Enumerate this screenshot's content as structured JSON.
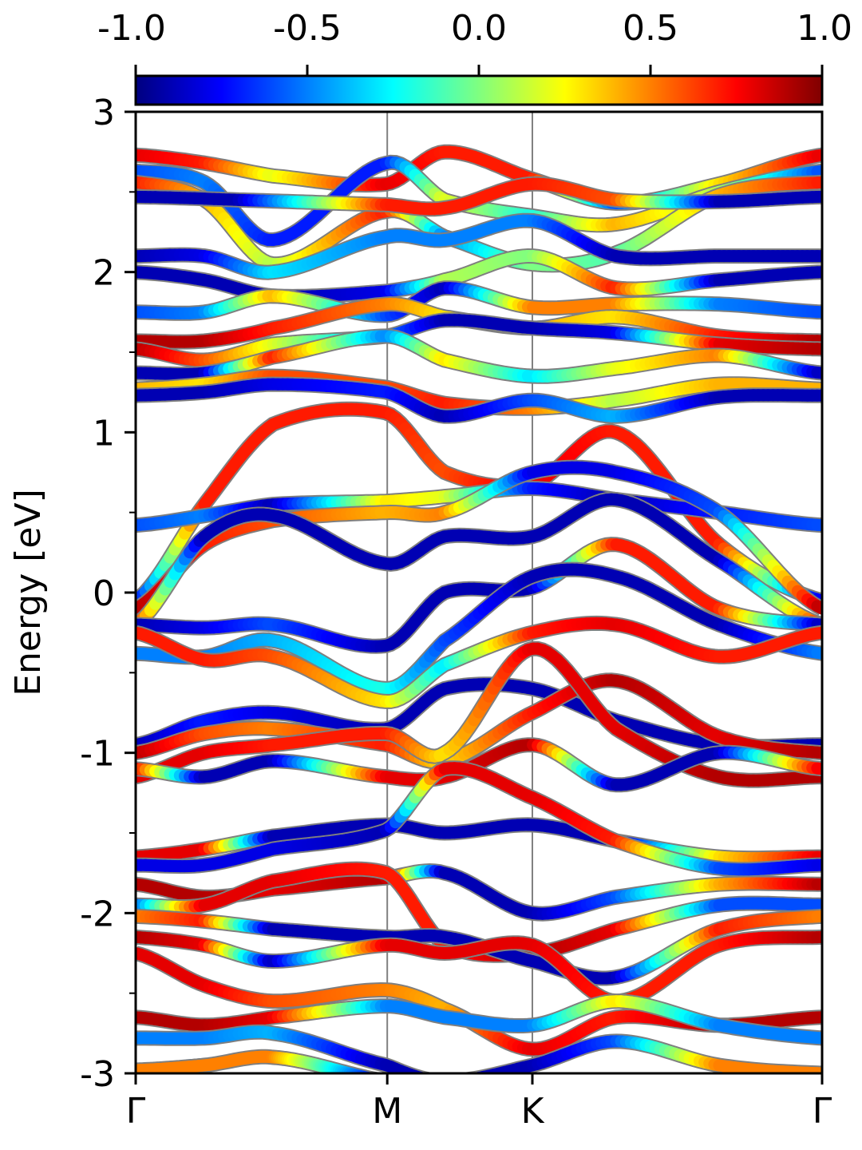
{
  "chart_data": {
    "type": "line",
    "title": "",
    "xlabel": "",
    "ylabel": "Energy [eV]",
    "ylim": [
      -3,
      3
    ],
    "grid": false,
    "legend": "none",
    "y_ticks": [
      {
        "value": 3,
        "label": "3"
      },
      {
        "value": 2,
        "label": "2"
      },
      {
        "value": 1,
        "label": "1"
      },
      {
        "value": 0,
        "label": "0"
      },
      {
        "value": -1,
        "label": "-1"
      },
      {
        "value": -2,
        "label": "-2"
      },
      {
        "value": -3,
        "label": "-3"
      }
    ],
    "y_minor_ticks": [
      2.5,
      1.5,
      0.5,
      -0.5,
      -1.5,
      -2.5
    ],
    "k_points": [
      {
        "label": "Γ",
        "x": 0.0
      },
      {
        "label": "M",
        "x": 0.3665
      },
      {
        "label": "K",
        "x": 0.5779
      },
      {
        "label": "Γ",
        "x": 1.0
      }
    ],
    "colorbar": {
      "colormap": "jet",
      "range": [
        -1.0,
        1.0
      ],
      "position": "top",
      "ticks": [
        {
          "value": -1.0,
          "label": "-1.0"
        },
        {
          "value": -0.5,
          "label": "-0.5"
        },
        {
          "value": 0.0,
          "label": "0.0"
        },
        {
          "value": 0.5,
          "label": "0.5"
        },
        {
          "value": 1.0,
          "label": "1.0"
        }
      ]
    },
    "series": [
      {
        "x": [
          0,
          0.1,
          0.2,
          0.3665,
          0.45,
          0.5779,
          0.7,
          0.85,
          1.0
        ],
        "y": [
          2.73,
          2.68,
          2.6,
          2.55,
          2.75,
          2.58,
          2.43,
          2.55,
          2.73
        ],
        "c": [
          0.8,
          0.7,
          0.2,
          0.8,
          0.7,
          0.7,
          -0.6,
          0.3,
          0.8
        ]
      },
      {
        "x": [
          0,
          0.1,
          0.2,
          0.3665,
          0.45,
          0.5779,
          0.7,
          0.85,
          1.0
        ],
        "y": [
          2.63,
          2.56,
          2.2,
          2.68,
          2.45,
          2.35,
          2.3,
          2.5,
          2.63
        ],
        "c": [
          -0.6,
          -0.5,
          -0.7,
          -0.7,
          0.2,
          -0.2,
          0.4,
          0.1,
          -0.6
        ]
      },
      {
        "x": [
          0,
          0.1,
          0.2,
          0.3665,
          0.45,
          0.5779,
          0.7,
          0.85,
          1.0
        ],
        "y": [
          2.56,
          2.45,
          2.05,
          2.38,
          2.22,
          2.05,
          2.12,
          2.48,
          2.56
        ],
        "c": [
          0.7,
          0.4,
          0.1,
          0.7,
          -0.5,
          0.0,
          -0.1,
          0.4,
          0.7
        ]
      },
      {
        "x": [
          0,
          0.15,
          0.3665,
          0.45,
          0.5779,
          0.7,
          0.85,
          1.0
        ],
        "y": [
          2.47,
          2.45,
          2.42,
          2.4,
          2.55,
          2.45,
          2.44,
          2.47
        ],
        "c": [
          -0.9,
          -0.9,
          0.7,
          0.7,
          0.7,
          0.6,
          -0.9,
          -0.9
        ]
      },
      {
        "x": [
          0,
          0.1,
          0.2,
          0.3665,
          0.45,
          0.5779,
          0.7,
          0.85,
          1.0
        ],
        "y": [
          2.1,
          2.1,
          2.0,
          2.22,
          2.2,
          2.32,
          2.1,
          2.1,
          2.1
        ],
        "c": [
          -0.9,
          -0.8,
          -0.3,
          -0.5,
          -0.5,
          -0.5,
          -0.9,
          -0.9,
          -0.9
        ]
      },
      {
        "x": [
          0,
          0.1,
          0.2,
          0.3665,
          0.45,
          0.5779,
          0.7,
          0.85,
          1.0
        ],
        "y": [
          2.0,
          1.95,
          1.85,
          1.88,
          1.95,
          2.1,
          1.9,
          1.95,
          2.0
        ],
        "c": [
          -0.9,
          -0.9,
          -0.9,
          -0.8,
          0.1,
          0.0,
          0.7,
          -0.9,
          -0.9
        ]
      },
      {
        "x": [
          0,
          0.1,
          0.2,
          0.3665,
          0.45,
          0.5779,
          0.7,
          0.85,
          1.0
        ],
        "y": [
          1.75,
          1.75,
          1.85,
          1.73,
          1.9,
          1.78,
          1.8,
          1.8,
          1.75
        ],
        "c": [
          -0.6,
          -0.5,
          0.4,
          -0.6,
          -0.9,
          0.5,
          0.5,
          -0.5,
          -0.6
        ]
      },
      {
        "x": [
          0,
          0.1,
          0.2,
          0.3665,
          0.45,
          0.5779,
          0.7,
          0.85,
          1.0
        ],
        "y": [
          1.57,
          1.57,
          1.65,
          1.8,
          1.72,
          1.65,
          1.72,
          1.6,
          1.57
        ],
        "c": [
          0.9,
          0.9,
          0.7,
          0.5,
          0.3,
          0.4,
          0.3,
          0.7,
          0.9
        ]
      },
      {
        "x": [
          0,
          0.1,
          0.2,
          0.3665,
          0.45,
          0.5779,
          0.7,
          0.85,
          1.0
        ],
        "y": [
          1.52,
          1.45,
          1.55,
          1.6,
          1.7,
          1.65,
          1.62,
          1.55,
          1.52
        ],
        "c": [
          0.9,
          0.6,
          0.2,
          -0.5,
          -0.9,
          -0.9,
          -0.8,
          0.8,
          0.9
        ]
      },
      {
        "x": [
          0,
          0.1,
          0.2,
          0.3665,
          0.45,
          0.5779,
          0.7,
          0.85,
          1.0
        ],
        "y": [
          1.37,
          1.37,
          1.47,
          1.6,
          1.45,
          1.35,
          1.4,
          1.48,
          1.37
        ],
        "c": [
          -0.9,
          -0.9,
          0.7,
          -0.5,
          0.3,
          -0.3,
          0.2,
          0.5,
          -0.9
        ]
      },
      {
        "x": [
          0,
          0.1,
          0.2,
          0.3665,
          0.45,
          0.5779,
          0.7,
          0.85,
          1.0
        ],
        "y": [
          1.27,
          1.3,
          1.35,
          1.28,
          1.18,
          1.15,
          1.2,
          1.3,
          1.27
        ],
        "c": [
          0.4,
          0.3,
          0.6,
          0.6,
          0.7,
          0.5,
          0.1,
          0.4,
          0.4
        ]
      },
      {
        "x": [
          0,
          0.1,
          0.2,
          0.3665,
          0.45,
          0.5779,
          0.7,
          0.85,
          1.0
        ],
        "y": [
          1.23,
          1.25,
          1.3,
          1.25,
          1.1,
          1.2,
          1.1,
          1.22,
          1.23
        ],
        "c": [
          -0.9,
          -0.9,
          -0.8,
          -0.7,
          -0.9,
          -0.6,
          -0.4,
          -0.9,
          -0.9
        ]
      },
      {
        "x": [
          0,
          0.1,
          0.2,
          0.3665,
          0.45,
          0.5779,
          0.7,
          0.85,
          1.0
        ],
        "y": [
          -0.05,
          0.55,
          1.05,
          1.12,
          0.75,
          0.68,
          1.0,
          0.3,
          -0.05
        ],
        "c": [
          -0.8,
          0.7,
          0.7,
          0.7,
          0.6,
          0.8,
          0.7,
          0.7,
          -0.8
        ]
      },
      {
        "x": [
          0,
          0.1,
          0.2,
          0.3665,
          0.45,
          0.5779,
          0.7,
          0.85,
          1.0
        ],
        "y": [
          0.42,
          0.48,
          0.55,
          0.57,
          0.6,
          0.65,
          0.58,
          0.5,
          0.42
        ],
        "c": [
          -0.6,
          -0.5,
          -0.9,
          0.3,
          0.2,
          -0.7,
          -0.9,
          -0.7,
          -0.6
        ]
      },
      {
        "x": [
          0,
          0.1,
          0.2,
          0.3665,
          0.45,
          0.5779,
          0.7,
          0.85,
          1.0
        ],
        "y": [
          -0.1,
          0.3,
          0.45,
          0.5,
          0.5,
          0.75,
          0.75,
          0.5,
          -0.1
        ],
        "c": [
          0.9,
          0.7,
          0.6,
          0.4,
          0.5,
          -0.8,
          -0.8,
          -0.6,
          0.9
        ]
      },
      {
        "x": [
          0,
          0.1,
          0.2,
          0.3665,
          0.45,
          0.5779,
          0.7,
          0.85,
          1.0
        ],
        "y": [
          -0.2,
          0.35,
          0.48,
          0.18,
          0.35,
          0.35,
          0.58,
          0.2,
          -0.2
        ],
        "c": [
          0.7,
          -0.9,
          -0.9,
          -0.9,
          -0.9,
          -0.9,
          -0.9,
          -0.9,
          0.7
        ]
      },
      {
        "x": [
          0,
          0.1,
          0.2,
          0.3665,
          0.45,
          0.5779,
          0.7,
          0.85,
          1.0
        ],
        "y": [
          -0.2,
          -0.22,
          -0.2,
          -0.33,
          0.0,
          0.03,
          0.3,
          -0.1,
          -0.2
        ],
        "c": [
          -0.9,
          -0.8,
          -0.6,
          -0.9,
          -0.9,
          -0.9,
          0.7,
          0.7,
          -0.9
        ]
      },
      {
        "x": [
          0,
          0.1,
          0.2,
          0.3665,
          0.45,
          0.5779,
          0.7,
          0.85,
          1.0
        ],
        "y": [
          -0.38,
          -0.4,
          -0.3,
          -0.6,
          -0.3,
          0.1,
          0.1,
          -0.2,
          -0.38
        ],
        "c": [
          -0.5,
          -0.5,
          -0.4,
          -0.2,
          -0.6,
          -0.9,
          -0.9,
          -0.9,
          -0.5
        ]
      },
      {
        "x": [
          0,
          0.1,
          0.2,
          0.3665,
          0.45,
          0.5779,
          0.7,
          0.85,
          1.0
        ],
        "y": [
          -0.25,
          -0.42,
          -0.4,
          -0.68,
          -0.45,
          -0.25,
          -0.2,
          -0.4,
          -0.25
        ],
        "c": [
          0.7,
          0.7,
          0.6,
          0.3,
          -0.3,
          0.7,
          0.8,
          0.7,
          0.7
        ]
      },
      {
        "x": [
          0,
          0.1,
          0.2,
          0.3665,
          0.45,
          0.5779,
          0.7,
          0.85,
          1.0
        ],
        "y": [
          -0.95,
          -0.8,
          -0.75,
          -0.85,
          -0.6,
          -0.6,
          -0.8,
          -0.95,
          -0.95
        ],
        "c": [
          -0.9,
          -0.7,
          -0.8,
          -0.9,
          -0.9,
          -0.9,
          -0.9,
          -0.9,
          -0.9
        ]
      },
      {
        "x": [
          0,
          0.1,
          0.2,
          0.3665,
          0.45,
          0.5779,
          0.7,
          0.85,
          1.0
        ],
        "y": [
          -1.0,
          -0.88,
          -0.85,
          -0.95,
          -1.05,
          -0.75,
          -0.55,
          -0.9,
          -1.0
        ],
        "c": [
          0.9,
          0.6,
          0.5,
          0.7,
          0.3,
          0.7,
          0.9,
          0.8,
          0.9
        ]
      },
      {
        "x": [
          0,
          0.1,
          0.2,
          0.3665,
          0.45,
          0.5779,
          0.7,
          0.85,
          1.0
        ],
        "y": [
          -1.15,
          -1.0,
          -0.95,
          -0.88,
          -1.0,
          -0.35,
          -0.85,
          -1.15,
          -1.15
        ],
        "c": [
          0.8,
          0.8,
          0.7,
          0.7,
          0.3,
          0.8,
          0.8,
          0.9,
          0.9
        ]
      },
      {
        "x": [
          0,
          0.1,
          0.2,
          0.3665,
          0.45,
          0.5779,
          0.7,
          0.85,
          1.0
        ],
        "y": [
          -1.1,
          -1.15,
          -1.05,
          -1.15,
          -1.15,
          -0.95,
          -1.2,
          -1.0,
          -1.1
        ],
        "c": [
          0.8,
          -0.9,
          -0.9,
          0.8,
          0.8,
          0.9,
          -0.9,
          -0.9,
          0.8
        ]
      },
      {
        "x": [
          0,
          0.1,
          0.2,
          0.3665,
          0.45,
          0.5779,
          0.7,
          0.85,
          1.0
        ],
        "y": [
          -1.65,
          -1.6,
          -1.52,
          -1.45,
          -1.5,
          -1.45,
          -1.55,
          -1.65,
          -1.65
        ],
        "c": [
          0.8,
          0.8,
          -0.9,
          -0.9,
          -0.9,
          -0.9,
          -0.9,
          0.3,
          0.8
        ]
      },
      {
        "x": [
          0,
          0.1,
          0.2,
          0.3665,
          0.45,
          0.5779,
          0.7,
          0.85,
          1.0
        ],
        "y": [
          -1.7,
          -1.7,
          -1.6,
          -1.48,
          -1.1,
          -1.28,
          -1.55,
          -1.72,
          -1.7
        ],
        "c": [
          -0.8,
          -0.8,
          -0.8,
          -0.9,
          0.8,
          0.8,
          0.7,
          -0.6,
          -0.8
        ]
      },
      {
        "x": [
          0,
          0.1,
          0.2,
          0.3665,
          0.45,
          0.5779,
          0.7,
          0.85,
          1.0
        ],
        "y": [
          -1.82,
          -1.9,
          -1.85,
          -1.78,
          -1.75,
          -2.0,
          -1.9,
          -1.82,
          -1.82
        ],
        "c": [
          0.9,
          0.9,
          0.8,
          0.9,
          -0.9,
          -0.9,
          -0.6,
          0.4,
          0.9
        ]
      },
      {
        "x": [
          0,
          0.1,
          0.2,
          0.3665,
          0.45,
          0.5779,
          0.7,
          0.85,
          1.0
        ],
        "y": [
          -1.95,
          -1.95,
          -1.8,
          -1.75,
          -2.2,
          -2.25,
          -2.1,
          -1.95,
          -1.95
        ],
        "c": [
          -0.6,
          0.8,
          0.8,
          0.7,
          0.7,
          0.9,
          0.8,
          -0.6,
          -0.6
        ]
      },
      {
        "x": [
          0,
          0.1,
          0.2,
          0.3665,
          0.45,
          0.5779,
          0.7,
          0.85,
          1.0
        ],
        "y": [
          -2.02,
          -2.05,
          -2.1,
          -2.15,
          -2.15,
          -2.3,
          -2.4,
          -2.1,
          -2.02
        ],
        "c": [
          0.5,
          0.7,
          -0.9,
          -0.9,
          -0.9,
          -0.9,
          -0.9,
          0.7,
          0.5
        ]
      },
      {
        "x": [
          0,
          0.1,
          0.2,
          0.3665,
          0.45,
          0.5779,
          0.7,
          0.85,
          1.0
        ],
        "y": [
          -2.15,
          -2.2,
          -2.3,
          -2.2,
          -2.25,
          -2.2,
          -2.55,
          -2.2,
          -2.15
        ],
        "c": [
          0.9,
          0.8,
          -0.9,
          0.8,
          0.8,
          0.8,
          0.7,
          0.7,
          0.9
        ]
      },
      {
        "x": [
          0,
          0.1,
          0.2,
          0.3665,
          0.45,
          0.5779,
          0.7,
          0.85,
          1.0
        ],
        "y": [
          -2.25,
          -2.45,
          -2.55,
          -2.48,
          -2.6,
          -2.85,
          -2.65,
          -2.7,
          -2.65
        ],
        "c": [
          0.8,
          0.8,
          0.6,
          0.5,
          0.4,
          0.8,
          0.7,
          0.9,
          0.9
        ]
      },
      {
        "x": [
          0,
          0.1,
          0.2,
          0.3665,
          0.45,
          0.5779,
          0.7,
          0.85,
          1.0
        ],
        "y": [
          -2.65,
          -2.7,
          -2.65,
          -2.58,
          -2.65,
          -2.7,
          -2.55,
          -2.7,
          -2.78
        ],
        "c": [
          0.9,
          0.9,
          0.8,
          -0.5,
          -0.5,
          -0.5,
          0.3,
          -0.5,
          -0.5
        ]
      },
      {
        "x": [
          0,
          0.1,
          0.2,
          0.3665,
          0.45,
          0.5779,
          0.7,
          0.85,
          1.0
        ],
        "y": [
          -2.78,
          -2.78,
          -2.75,
          -2.95,
          -3.05,
          -2.95,
          -2.8,
          -2.95,
          -3.0
        ],
        "c": [
          -0.5,
          -0.5,
          -0.4,
          -0.9,
          -0.9,
          -0.9,
          -0.6,
          0.5,
          0.5
        ]
      },
      {
        "x": [
          0,
          0.1,
          0.2,
          0.3665,
          0.45
        ],
        "y": [
          -2.98,
          -2.95,
          -2.9,
          -3.05,
          -3.1
        ],
        "c": [
          0.5,
          0.5,
          0.5,
          -0.9,
          -0.9
        ]
      }
    ]
  }
}
